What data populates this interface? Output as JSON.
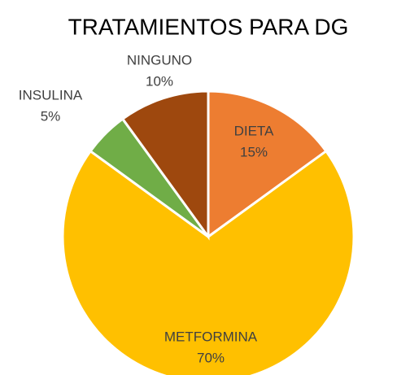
{
  "chart_data": {
    "type": "pie",
    "title": "TRATAMIENTOS PARA DG",
    "categories": [
      "DIETA",
      "METFORMINA",
      "INSULINA",
      "NINGUNO"
    ],
    "values": [
      15,
      70,
      5,
      10
    ],
    "value_labels": [
      "15%",
      "70%",
      "5%",
      "10%"
    ],
    "colors": [
      "#ED7D31",
      "#FFC000",
      "#70AD47",
      "#9E480E"
    ]
  }
}
